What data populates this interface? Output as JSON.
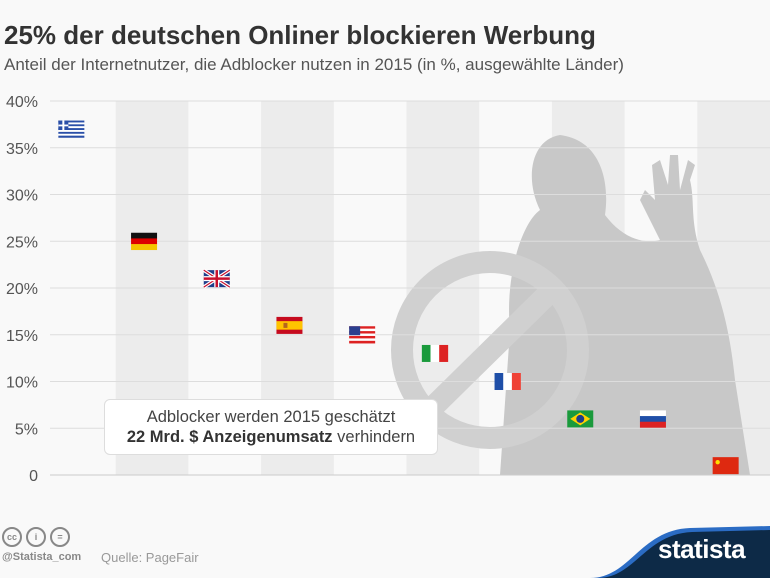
{
  "header": {
    "title": "25% der deutschen Onliner blockieren Werbung",
    "subtitle": "Anteil der Internetnutzer, die Adblocker nutzen in 2015 (in %, ausgewählte Länder)"
  },
  "note": {
    "line1": "Adblocker werden 2015 geschätzt",
    "line2_bold": "22 Mrd. $ Anzeigenumsatz",
    "line2_rest": " verhindern"
  },
  "footer": {
    "handle": "@Statista_com",
    "source": "Quelle: PageFair",
    "logo": "statista",
    "cc_icons": [
      "cc-icon",
      "by-icon",
      "nd-icon"
    ]
  },
  "chart_data": {
    "type": "scatter",
    "title": "25% der deutschen Onliner blockieren Werbung",
    "categories": [
      "Griechenland",
      "Deutschland",
      "Großbritannien",
      "Spanien",
      "USA",
      "Italien",
      "Frankreich",
      "Brasilien",
      "Russland",
      "China"
    ],
    "markers": [
      "flag-greece",
      "flag-germany",
      "flag-uk",
      "flag-spain",
      "flag-usa",
      "flag-italy",
      "flag-france",
      "flag-brazil",
      "flag-russia",
      "flag-china"
    ],
    "values": [
      37,
      25,
      21,
      16,
      15,
      13,
      10,
      6,
      6,
      1
    ],
    "ylim": [
      0,
      40
    ],
    "yticks": [
      "0",
      "5%",
      "10%",
      "15%",
      "20%",
      "25%",
      "30%",
      "35%",
      "40%"
    ],
    "grid": true,
    "colors": {
      "band": "#ececec",
      "grid": "#dddddd",
      "silhouette": "#c8c8c8",
      "logo_bg": "#0d2a47",
      "logo_accent": "#2b6cc4"
    }
  }
}
